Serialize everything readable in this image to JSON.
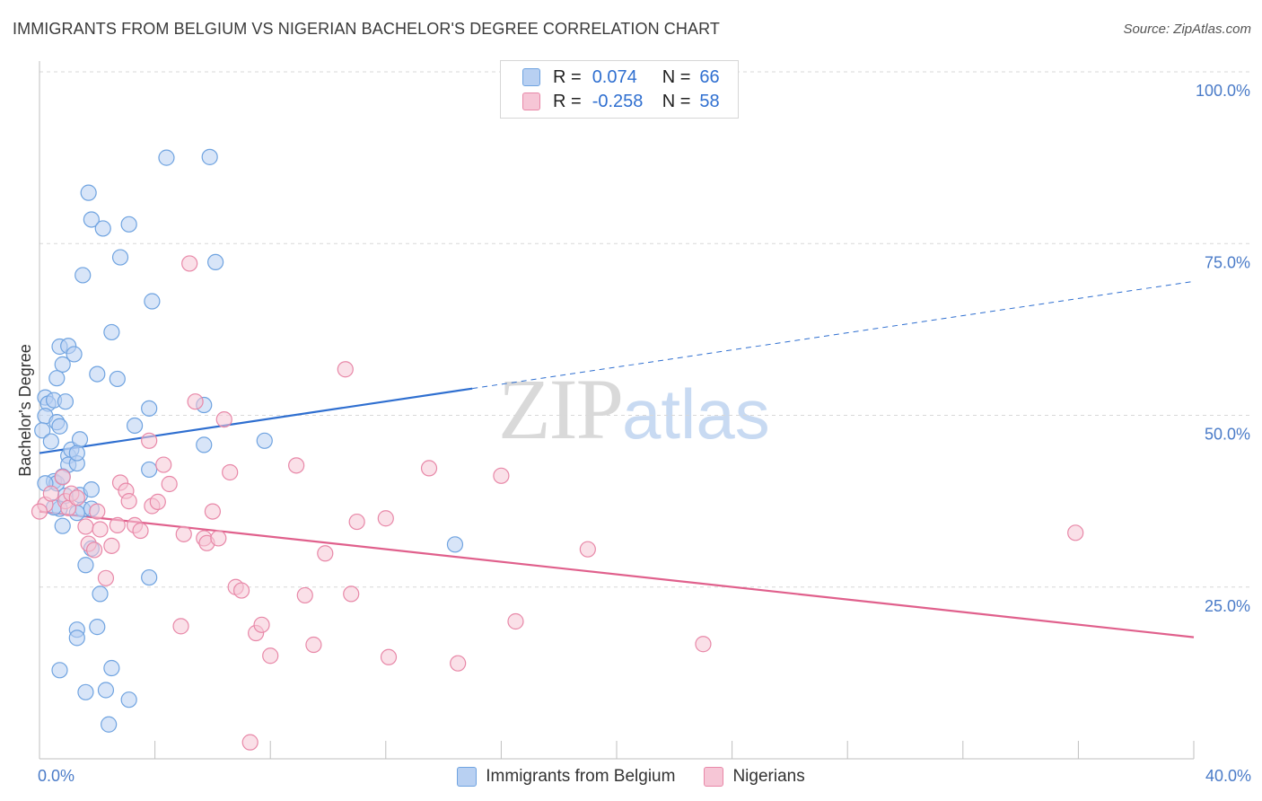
{
  "title": "IMMIGRANTS FROM BELGIUM VS NIGERIAN BACHELOR'S DEGREE CORRELATION CHART",
  "source": "Source: ZipAtlas.com",
  "watermark": {
    "zip": "ZIP",
    "atlas": "atlas"
  },
  "legend": {
    "rows": [
      {
        "r_label": "R =",
        "r_value": "0.074",
        "n_label": "N =",
        "n_value": "66"
      },
      {
        "r_label": "R =",
        "r_value": "-0.258",
        "n_label": "N =",
        "n_value": "58"
      }
    ]
  },
  "colors": {
    "blue": "#6fa3e0",
    "blue_fill": "#b8d0f2",
    "blue_line": "#2f6fd0",
    "pink": "#e888a8",
    "pink_fill": "#f6c6d6",
    "pink_line": "#e0608c",
    "grid": "#d8d8d8"
  },
  "chart_data": {
    "type": "scatter",
    "ylabel": "Bachelor's Degree",
    "xlim": [
      0,
      40
    ],
    "ylim": [
      0,
      100
    ],
    "x_tick_labels": [
      "0.0%",
      "40.0%"
    ],
    "y_ticks": [
      25,
      50,
      75,
      100
    ],
    "y_tick_labels": [
      "25.0%",
      "50.0%",
      "75.0%",
      "100.0%"
    ],
    "grid": true,
    "series": [
      {
        "name": "Immigrants from Belgium",
        "color": "blue",
        "points": [
          [
            0.2,
            52.6
          ],
          [
            0.3,
            51.7
          ],
          [
            0.2,
            49.9
          ],
          [
            0.1,
            47.8
          ],
          [
            0.5,
            52.2
          ],
          [
            0.6,
            49.0
          ],
          [
            0.7,
            48.4
          ],
          [
            0.4,
            46.2
          ],
          [
            0.8,
            57.4
          ],
          [
            0.7,
            60.0
          ],
          [
            1.0,
            60.1
          ],
          [
            1.2,
            58.9
          ],
          [
            0.9,
            52.0
          ],
          [
            1.0,
            44.1
          ],
          [
            1.0,
            42.8
          ],
          [
            1.1,
            45.0
          ],
          [
            1.3,
            43.0
          ],
          [
            1.4,
            46.5
          ],
          [
            1.3,
            44.5
          ],
          [
            0.5,
            40.4
          ],
          [
            0.6,
            40.1
          ],
          [
            0.8,
            41.1
          ],
          [
            0.9,
            38.3
          ],
          [
            1.4,
            38.4
          ],
          [
            1.5,
            36.3
          ],
          [
            1.8,
            36.4
          ],
          [
            1.8,
            39.2
          ],
          [
            0.7,
            36.4
          ],
          [
            1.3,
            35.8
          ],
          [
            0.8,
            33.9
          ],
          [
            1.6,
            28.2
          ],
          [
            1.8,
            30.6
          ],
          [
            2.1,
            24.0
          ],
          [
            1.3,
            18.8
          ],
          [
            1.3,
            17.6
          ],
          [
            2.0,
            19.2
          ],
          [
            0.7,
            12.9
          ],
          [
            1.6,
            9.7
          ],
          [
            2.3,
            10.0
          ],
          [
            2.5,
            13.2
          ],
          [
            3.1,
            8.6
          ],
          [
            2.4,
            5.0
          ],
          [
            3.8,
            26.4
          ],
          [
            3.8,
            42.1
          ],
          [
            3.3,
            48.5
          ],
          [
            3.8,
            51.0
          ],
          [
            2.0,
            56.0
          ],
          [
            2.7,
            55.3
          ],
          [
            2.5,
            62.1
          ],
          [
            3.9,
            66.6
          ],
          [
            1.5,
            70.4
          ],
          [
            2.8,
            73.0
          ],
          [
            1.8,
            78.5
          ],
          [
            2.2,
            77.2
          ],
          [
            3.1,
            77.8
          ],
          [
            1.7,
            82.4
          ],
          [
            4.4,
            87.5
          ],
          [
            5.9,
            87.6
          ],
          [
            6.1,
            72.3
          ],
          [
            5.7,
            51.5
          ],
          [
            5.7,
            45.7
          ],
          [
            7.8,
            46.3
          ],
          [
            14.4,
            31.2
          ],
          [
            0.2,
            40.1
          ],
          [
            0.5,
            36.6
          ],
          [
            0.6,
            55.4
          ]
        ]
      },
      {
        "name": "Nigerians",
        "color": "pink",
        "points": [
          [
            0.2,
            37.0
          ],
          [
            0.4,
            38.6
          ],
          [
            0.8,
            41.0
          ],
          [
            0.9,
            37.5
          ],
          [
            1.0,
            36.5
          ],
          [
            1.1,
            38.6
          ],
          [
            1.3,
            38.0
          ],
          [
            1.6,
            33.8
          ],
          [
            1.7,
            31.3
          ],
          [
            1.9,
            30.4
          ],
          [
            2.0,
            36.0
          ],
          [
            2.1,
            33.4
          ],
          [
            2.3,
            26.3
          ],
          [
            2.5,
            31.0
          ],
          [
            2.7,
            34.0
          ],
          [
            2.8,
            40.2
          ],
          [
            3.0,
            39.0
          ],
          [
            3.1,
            37.5
          ],
          [
            3.3,
            34.0
          ],
          [
            3.5,
            33.2
          ],
          [
            3.8,
            46.3
          ],
          [
            3.9,
            36.8
          ],
          [
            4.1,
            37.4
          ],
          [
            4.3,
            42.8
          ],
          [
            4.5,
            40.0
          ],
          [
            4.9,
            19.3
          ],
          [
            5.0,
            32.7
          ],
          [
            5.2,
            72.1
          ],
          [
            5.4,
            52.0
          ],
          [
            5.7,
            32.1
          ],
          [
            5.8,
            31.4
          ],
          [
            6.0,
            36.0
          ],
          [
            6.2,
            32.1
          ],
          [
            6.4,
            49.4
          ],
          [
            6.6,
            41.7
          ],
          [
            6.8,
            25.0
          ],
          [
            7.0,
            24.5
          ],
          [
            7.3,
            2.4
          ],
          [
            7.5,
            18.3
          ],
          [
            7.7,
            19.5
          ],
          [
            8.0,
            15.0
          ],
          [
            8.9,
            42.7
          ],
          [
            9.2,
            23.8
          ],
          [
            9.5,
            16.6
          ],
          [
            9.9,
            29.9
          ],
          [
            10.6,
            56.7
          ],
          [
            10.8,
            24.0
          ],
          [
            11.0,
            34.5
          ],
          [
            12.0,
            35.0
          ],
          [
            12.1,
            14.8
          ],
          [
            13.5,
            42.3
          ],
          [
            14.5,
            13.9
          ],
          [
            16.0,
            41.2
          ],
          [
            16.5,
            20.0
          ],
          [
            19.0,
            30.5
          ],
          [
            23.0,
            16.7
          ],
          [
            35.9,
            32.9
          ],
          [
            0.0,
            36.0
          ]
        ]
      }
    ],
    "trend_lines": [
      {
        "series": "Immigrants from Belgium",
        "x_solid": [
          0,
          15
        ],
        "y_solid": [
          44.5,
          53.9
        ],
        "x_dashed": [
          15,
          40
        ],
        "y_dashed": [
          53.9,
          69.5
        ]
      },
      {
        "series": "Nigerians",
        "x": [
          0,
          40
        ],
        "y": [
          36.0,
          17.7
        ]
      }
    ]
  }
}
